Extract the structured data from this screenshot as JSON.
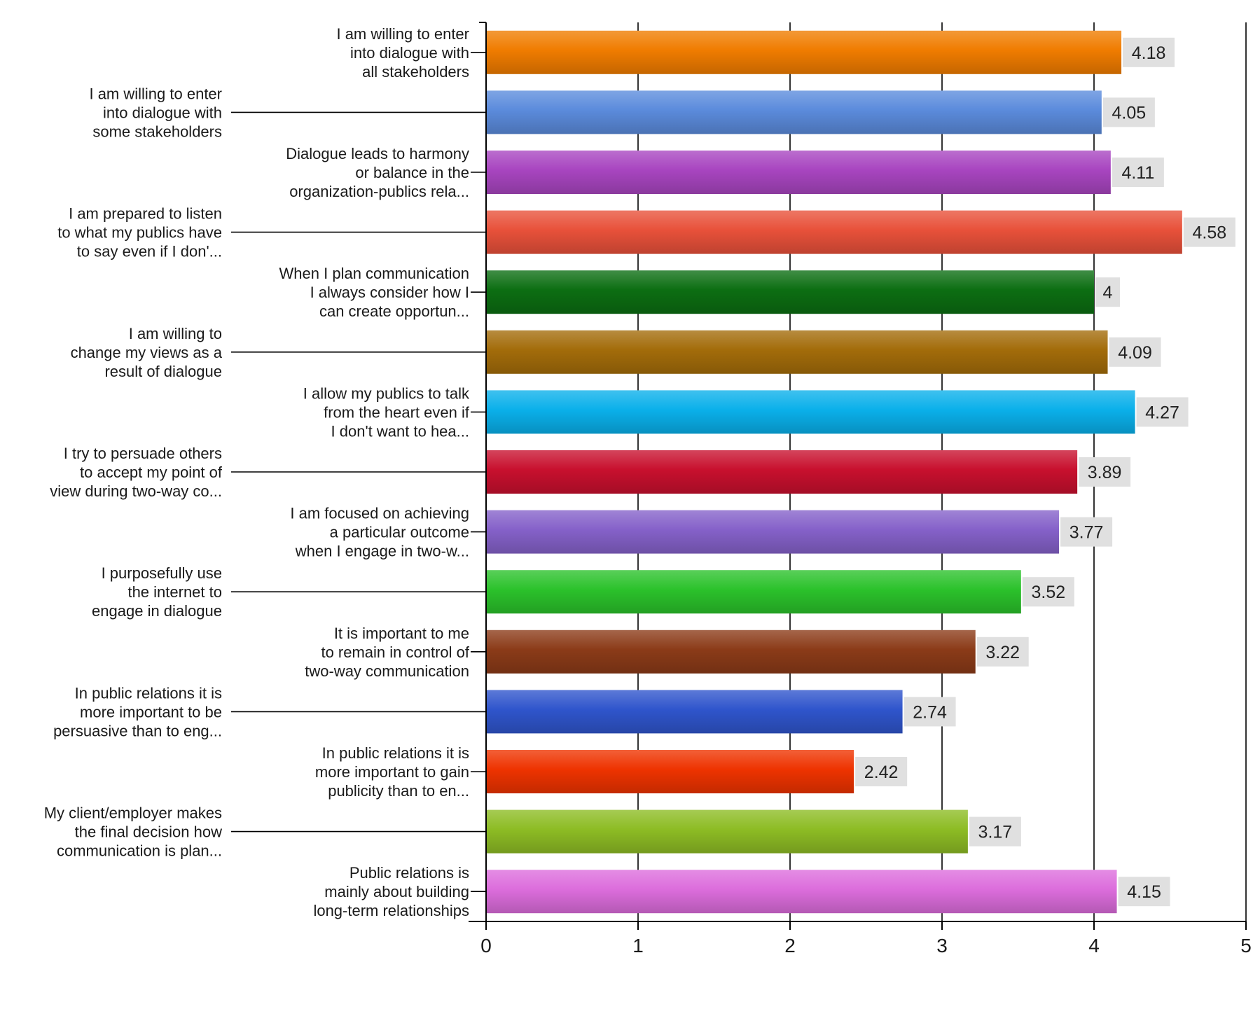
{
  "chart_data": {
    "type": "bar",
    "orientation": "horizontal",
    "title": "",
    "xlabel": "",
    "ylabel": "",
    "xlim": [
      0,
      5
    ],
    "x_ticks": [
      "0",
      "1",
      "2",
      "3",
      "4",
      "5"
    ],
    "grid": "vertical gridlines at each integer",
    "legend": "none",
    "categories": [
      [
        "I am willing to enter",
        "into dialogue with",
        "all stakeholders"
      ],
      [
        "I am willing to enter",
        "into dialogue with",
        "some stakeholders"
      ],
      [
        "Dialogue leads to harmony",
        "or balance in the",
        "organization-publics rela..."
      ],
      [
        "I am prepared to listen",
        "to what my publics have",
        "to say even if I don'..."
      ],
      [
        "When I plan communication",
        "I always consider how I",
        "can create opportun..."
      ],
      [
        "I am willing to",
        "change my views as a",
        "result of dialogue"
      ],
      [
        "I allow my publics to talk",
        "from the heart even if",
        "I don't want to hea..."
      ],
      [
        "I try to persuade others",
        "to accept my point of",
        "view during two-way co..."
      ],
      [
        "I am focused on achieving",
        "a particular outcome",
        "when I engage in two-w..."
      ],
      [
        "I purposefully use",
        "the internet to",
        "engage in dialogue"
      ],
      [
        "It is important to me",
        "to remain in control of",
        "two-way communication"
      ],
      [
        "In public relations it is",
        "more important to be",
        "persuasive than to eng..."
      ],
      [
        "In public relations it is",
        "more important to gain",
        "publicity than to en..."
      ],
      [
        "My client/employer makes",
        "the final decision how",
        "communication is plan..."
      ],
      [
        "Public relations is",
        "mainly about building",
        "long-term relationships"
      ]
    ],
    "values": [
      4.18,
      4.05,
      4.11,
      4.58,
      4,
      4.09,
      4.27,
      3.89,
      3.77,
      3.52,
      3.22,
      2.74,
      2.42,
      3.17,
      4.15
    ],
    "value_labels": [
      "4.18",
      "4.05",
      "4.11",
      "4.58",
      "4",
      "4.09",
      "4.27",
      "3.89",
      "3.77",
      "3.52",
      "3.22",
      "2.74",
      "2.42",
      "3.17",
      "4.15"
    ],
    "colors": [
      "#f07c00",
      "#5b8bdc",
      "#a845c0",
      "#e8513a",
      "#0c6e12",
      "#a36c0a",
      "#0ab0ea",
      "#c8102e",
      "#8561c9",
      "#2bc22b",
      "#8b3b18",
      "#2f55cc",
      "#ee3300",
      "#8dbc24",
      "#dc6ddc"
    ]
  }
}
